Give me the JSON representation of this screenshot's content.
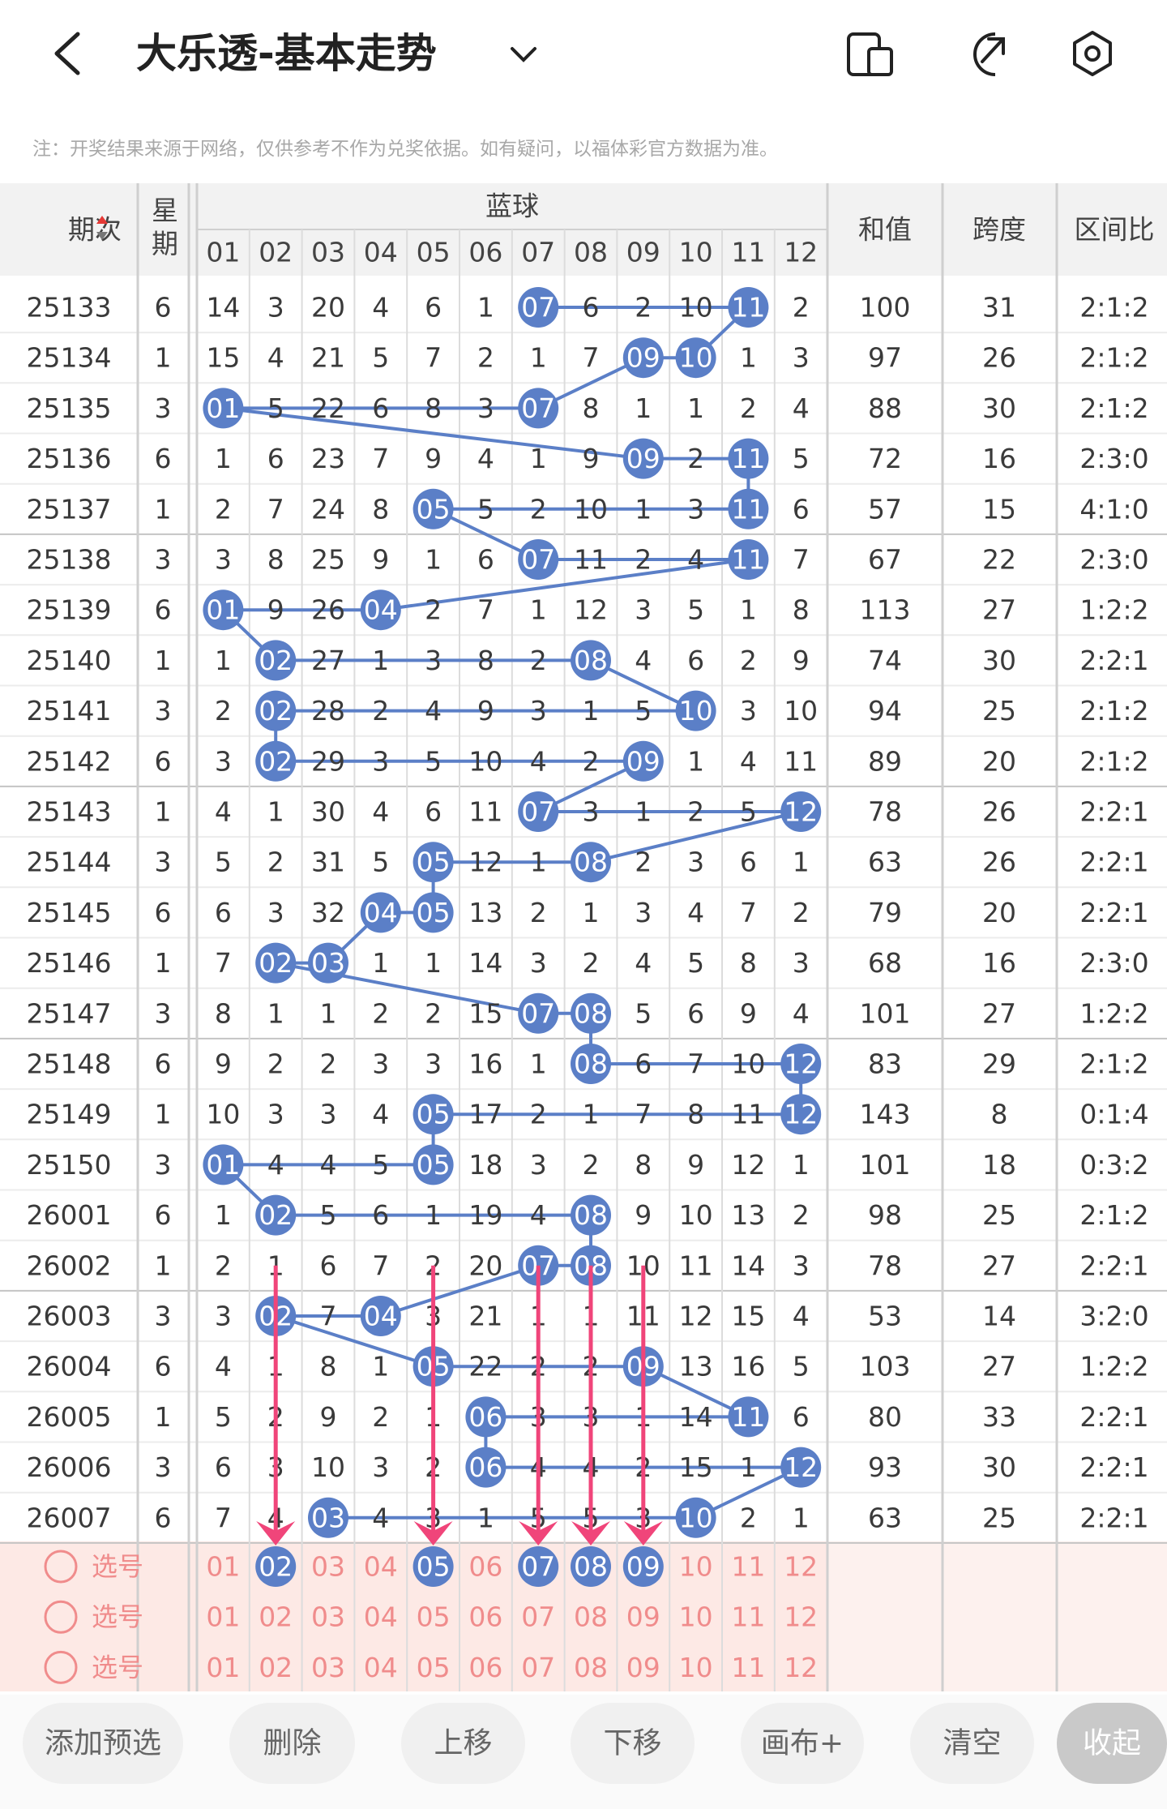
{
  "header": {
    "title": "大乐透-基本走势",
    "note": "注：开奖结果来源于网络，仅供参考不作为兑奖依据。如有疑问，以福体彩官方数据为准。"
  },
  "table": {
    "headers": {
      "period": "期次",
      "weekday": "星期",
      "group": "蓝球",
      "balls": [
        "01",
        "02",
        "03",
        "04",
        "05",
        "06",
        "07",
        "08",
        "09",
        "10",
        "11",
        "12"
      ],
      "sum": "和值",
      "span": "跨度",
      "ratio": "区间比"
    },
    "rows": [
      {
        "period": "25133",
        "weekday": "6",
        "cells": [
          "14",
          "3",
          "20",
          "4",
          "6",
          "1",
          "07",
          "6",
          "2",
          "10",
          "11",
          "2"
        ],
        "hits": [
          6,
          10
        ],
        "sum": "100",
        "span": "31",
        "ratio": "2:1:2"
      },
      {
        "period": "25134",
        "weekday": "1",
        "cells": [
          "15",
          "4",
          "21",
          "5",
          "7",
          "2",
          "1",
          "7",
          "09",
          "10",
          "1",
          "3"
        ],
        "hits": [
          8,
          9
        ],
        "sum": "97",
        "span": "26",
        "ratio": "2:1:2"
      },
      {
        "period": "25135",
        "weekday": "3",
        "cells": [
          "01",
          "5",
          "22",
          "6",
          "8",
          "3",
          "07",
          "8",
          "1",
          "1",
          "2",
          "4"
        ],
        "hits": [
          0,
          6
        ],
        "sum": "88",
        "span": "30",
        "ratio": "2:1:2"
      },
      {
        "period": "25136",
        "weekday": "6",
        "cells": [
          "1",
          "6",
          "23",
          "7",
          "9",
          "4",
          "1",
          "9",
          "09",
          "2",
          "11",
          "5"
        ],
        "hits": [
          8,
          10
        ],
        "sum": "72",
        "span": "16",
        "ratio": "2:3:0"
      },
      {
        "period": "25137",
        "weekday": "1",
        "cells": [
          "2",
          "7",
          "24",
          "8",
          "05",
          "5",
          "2",
          "10",
          "1",
          "3",
          "11",
          "6"
        ],
        "hits": [
          4,
          10
        ],
        "sum": "57",
        "span": "15",
        "ratio": "4:1:0"
      },
      {
        "period": "25138",
        "weekday": "3",
        "cells": [
          "3",
          "8",
          "25",
          "9",
          "1",
          "6",
          "07",
          "11",
          "2",
          "4",
          "11",
          "7"
        ],
        "hits": [
          6,
          10
        ],
        "sum": "67",
        "span": "22",
        "ratio": "2:3:0"
      },
      {
        "period": "25139",
        "weekday": "6",
        "cells": [
          "01",
          "9",
          "26",
          "04",
          "2",
          "7",
          "1",
          "12",
          "3",
          "5",
          "1",
          "8"
        ],
        "hits": [
          0,
          3
        ],
        "sum": "113",
        "span": "27",
        "ratio": "1:2:2"
      },
      {
        "period": "25140",
        "weekday": "1",
        "cells": [
          "1",
          "02",
          "27",
          "1",
          "3",
          "8",
          "2",
          "08",
          "4",
          "6",
          "2",
          "9"
        ],
        "hits": [
          1,
          7
        ],
        "sum": "74",
        "span": "30",
        "ratio": "2:2:1"
      },
      {
        "period": "25141",
        "weekday": "3",
        "cells": [
          "2",
          "02",
          "28",
          "2",
          "4",
          "9",
          "3",
          "1",
          "5",
          "10",
          "3",
          "10"
        ],
        "hits": [
          1,
          9
        ],
        "sum": "94",
        "span": "25",
        "ratio": "2:1:2"
      },
      {
        "period": "25142",
        "weekday": "6",
        "cells": [
          "3",
          "02",
          "29",
          "3",
          "5",
          "10",
          "4",
          "2",
          "09",
          "1",
          "4",
          "11"
        ],
        "hits": [
          1,
          8
        ],
        "sum": "89",
        "span": "20",
        "ratio": "2:1:2"
      },
      {
        "period": "25143",
        "weekday": "1",
        "cells": [
          "4",
          "1",
          "30",
          "4",
          "6",
          "11",
          "07",
          "3",
          "1",
          "2",
          "5",
          "12"
        ],
        "hits": [
          6,
          11
        ],
        "sum": "78",
        "span": "26",
        "ratio": "2:2:1"
      },
      {
        "period": "25144",
        "weekday": "3",
        "cells": [
          "5",
          "2",
          "31",
          "5",
          "05",
          "12",
          "1",
          "08",
          "2",
          "3",
          "6",
          "1"
        ],
        "hits": [
          4,
          7
        ],
        "sum": "63",
        "span": "26",
        "ratio": "2:2:1"
      },
      {
        "period": "25145",
        "weekday": "6",
        "cells": [
          "6",
          "3",
          "32",
          "04",
          "05",
          "13",
          "2",
          "1",
          "3",
          "4",
          "7",
          "2"
        ],
        "hits": [
          3,
          4
        ],
        "sum": "79",
        "span": "20",
        "ratio": "2:2:1"
      },
      {
        "period": "25146",
        "weekday": "1",
        "cells": [
          "7",
          "02",
          "03",
          "1",
          "1",
          "14",
          "3",
          "2",
          "4",
          "5",
          "8",
          "3"
        ],
        "hits": [
          1,
          2
        ],
        "sum": "68",
        "span": "16",
        "ratio": "2:3:0"
      },
      {
        "period": "25147",
        "weekday": "3",
        "cells": [
          "8",
          "1",
          "1",
          "2",
          "2",
          "15",
          "07",
          "08",
          "5",
          "6",
          "9",
          "4"
        ],
        "hits": [
          6,
          7
        ],
        "sum": "101",
        "span": "27",
        "ratio": "1:2:2"
      },
      {
        "period": "25148",
        "weekday": "6",
        "cells": [
          "9",
          "2",
          "2",
          "3",
          "3",
          "16",
          "1",
          "08",
          "6",
          "7",
          "10",
          "12"
        ],
        "hits": [
          7,
          11
        ],
        "sum": "83",
        "span": "29",
        "ratio": "2:1:2"
      },
      {
        "period": "25149",
        "weekday": "1",
        "cells": [
          "10",
          "3",
          "3",
          "4",
          "05",
          "17",
          "2",
          "1",
          "7",
          "8",
          "11",
          "12"
        ],
        "hits": [
          4,
          11
        ],
        "sum": "143",
        "span": "8",
        "ratio": "0:1:4"
      },
      {
        "period": "25150",
        "weekday": "3",
        "cells": [
          "01",
          "4",
          "4",
          "5",
          "05",
          "18",
          "3",
          "2",
          "8",
          "9",
          "12",
          "1"
        ],
        "hits": [
          0,
          4
        ],
        "sum": "101",
        "span": "18",
        "ratio": "0:3:2"
      },
      {
        "period": "26001",
        "weekday": "6",
        "cells": [
          "1",
          "02",
          "5",
          "6",
          "1",
          "19",
          "4",
          "08",
          "9",
          "10",
          "13",
          "2"
        ],
        "hits": [
          1,
          7
        ],
        "sum": "98",
        "span": "25",
        "ratio": "2:1:2"
      },
      {
        "period": "26002",
        "weekday": "1",
        "cells": [
          "2",
          "1",
          "6",
          "7",
          "2",
          "20",
          "07",
          "08",
          "10",
          "11",
          "14",
          "3"
        ],
        "hits": [
          6,
          7
        ],
        "sum": "78",
        "span": "27",
        "ratio": "2:2:1"
      },
      {
        "period": "26003",
        "weekday": "3",
        "cells": [
          "3",
          "02",
          "7",
          "04",
          "3",
          "21",
          "1",
          "1",
          "11",
          "12",
          "15",
          "4"
        ],
        "hits": [
          1,
          3
        ],
        "sum": "53",
        "span": "14",
        "ratio": "3:2:0"
      },
      {
        "period": "26004",
        "weekday": "6",
        "cells": [
          "4",
          "1",
          "8",
          "1",
          "05",
          "22",
          "2",
          "2",
          "09",
          "13",
          "16",
          "5"
        ],
        "hits": [
          4,
          8
        ],
        "sum": "103",
        "span": "27",
        "ratio": "1:2:2"
      },
      {
        "period": "26005",
        "weekday": "1",
        "cells": [
          "5",
          "2",
          "9",
          "2",
          "1",
          "06",
          "3",
          "3",
          "1",
          "14",
          "11",
          "6"
        ],
        "hits": [
          5,
          10
        ],
        "sum": "80",
        "span": "33",
        "ratio": "2:2:1"
      },
      {
        "period": "26006",
        "weekday": "3",
        "cells": [
          "6",
          "3",
          "10",
          "3",
          "2",
          "06",
          "4",
          "4",
          "2",
          "15",
          "1",
          "12"
        ],
        "hits": [
          5,
          11
        ],
        "sum": "93",
        "span": "30",
        "ratio": "2:2:1"
      },
      {
        "period": "26007",
        "weekday": "6",
        "cells": [
          "7",
          "4",
          "03",
          "4",
          "3",
          "1",
          "5",
          "5",
          "3",
          "10",
          "2",
          "1"
        ],
        "hits": [
          2,
          9
        ],
        "sum": "63",
        "span": "25",
        "ratio": "2:2:1"
      }
    ]
  },
  "picks": [
    {
      "label": "选号",
      "numbers": [
        "01",
        "02",
        "03",
        "04",
        "05",
        "06",
        "07",
        "08",
        "09",
        "10",
        "11",
        "12"
      ],
      "selected": [
        1,
        4,
        6,
        7,
        8
      ]
    },
    {
      "label": "选号",
      "numbers": [
        "01",
        "02",
        "03",
        "04",
        "05",
        "06",
        "07",
        "08",
        "09",
        "10",
        "11",
        "12"
      ],
      "selected": []
    },
    {
      "label": "选号",
      "numbers": [
        "01",
        "02",
        "03",
        "04",
        "05",
        "06",
        "07",
        "08",
        "09",
        "10",
        "11",
        "12"
      ],
      "selected": []
    }
  ],
  "buttons": [
    "添加预选",
    "删除",
    "上移",
    "下移",
    "画布+",
    "清空",
    "收起"
  ]
}
